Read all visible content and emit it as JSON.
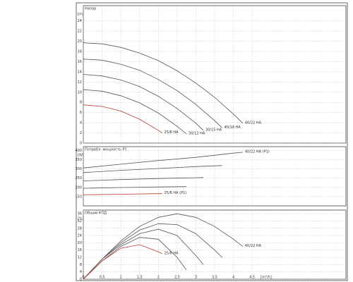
{
  "chart_data": [
    {
      "type": "line",
      "title": "Напор",
      "y_label": "[m]",
      "xlim": [
        0,
        7
      ],
      "xticks": [
        0,
        0.5,
        1,
        1.5,
        2,
        2.5,
        3,
        3.5,
        4,
        4.5
      ],
      "ylim": [
        0,
        27
      ],
      "yticks": [
        0,
        2,
        4,
        6,
        8,
        10,
        12,
        14,
        16,
        18,
        20,
        22,
        24
      ],
      "grid": true,
      "series": [
        {
          "name": "40/22 HA",
          "color": "#555555",
          "x": [
            0,
            0.5,
            1,
            1.5,
            2,
            2.5,
            3,
            3.5,
            4,
            4.25
          ],
          "values": [
            19.7,
            19.5,
            18.8,
            17.7,
            16.2,
            14.2,
            11.8,
            9.0,
            5.7,
            3.9
          ]
        },
        {
          "name": "40/18 HA",
          "color": "#555555",
          "x": [
            0,
            0.5,
            1,
            1.5,
            2,
            2.5,
            3,
            3.5,
            3.7
          ],
          "values": [
            16.5,
            16.3,
            15.5,
            14.3,
            12.5,
            10.3,
            7.6,
            4.4,
            3.0
          ]
        },
        {
          "name": "30/15 HA",
          "color": "#555555",
          "x": [
            0,
            0.5,
            1,
            1.5,
            2,
            2.5,
            3,
            3.2
          ],
          "values": [
            13.5,
            13.2,
            12.4,
            11.1,
            9.2,
            6.8,
            3.9,
            2.5
          ]
        },
        {
          "name": "30/12 HA",
          "color": "#555555",
          "x": [
            0,
            0.5,
            1,
            1.5,
            2,
            2.5,
            2.75
          ],
          "values": [
            10.5,
            10.2,
            9.3,
            7.9,
            5.9,
            3.3,
            1.8
          ]
        },
        {
          "name": "25/8 HA",
          "color": "#c0392b",
          "x": [
            0,
            0.5,
            1,
            1.5,
            2,
            2.1
          ],
          "values": [
            7.5,
            7.2,
            6.3,
            4.7,
            2.5,
            2.0
          ]
        }
      ]
    },
    {
      "type": "line",
      "title": "Потребл. мощность P1",
      "y_label": "[W]",
      "xlim": [
        0,
        7
      ],
      "xticks": [
        0,
        0.5,
        1,
        1.5,
        2,
        2.5,
        3,
        3.5,
        4,
        4.5
      ],
      "ylim": [
        100,
        420
      ],
      "yticks": [
        150,
        200,
        250,
        300,
        350,
        400
      ],
      "grid": true,
      "series": [
        {
          "name": "40/22 HA (P1)",
          "color": "#555555",
          "x": [
            0,
            1,
            2,
            3,
            4,
            4.25
          ],
          "values": [
            305,
            325,
            345,
            362,
            385,
            390
          ]
        },
        {
          "color": "#555555",
          "x": [
            0,
            1,
            2,
            3,
            3.7
          ],
          "values": [
            280,
            292,
            302,
            312,
            318
          ]
        },
        {
          "color": "#555555",
          "x": [
            0,
            1,
            2,
            3,
            3.2
          ],
          "values": [
            235,
            242,
            248,
            252,
            253
          ]
        },
        {
          "color": "#555555",
          "x": [
            0,
            1,
            2,
            2.75
          ],
          "values": [
            195,
            199,
            202,
            204
          ]
        },
        {
          "name": "25/8 HA (P1)",
          "color": "#c0392b",
          "x": [
            0,
            1,
            2,
            2.1
          ],
          "values": [
            160,
            163,
            166,
            166
          ]
        }
      ]
    },
    {
      "type": "line",
      "title": "Общий КПД",
      "y_label": "[%]",
      "x_label": "[m³/h]",
      "xlim": [
        0,
        7
      ],
      "xticks": [
        0,
        {
          "value": 0.5,
          "label": "0,5"
        },
        1,
        {
          "value": 1.5,
          "label": "1,5"
        },
        2,
        {
          "value": 2.5,
          "label": "2,5"
        },
        3,
        {
          "value": 3.5,
          "label": "3,5"
        },
        4,
        {
          "value": 4.5,
          "label": "4,5"
        }
      ],
      "ylim": [
        0,
        38
      ],
      "yticks": [
        0,
        4,
        8,
        12,
        16,
        20,
        24,
        28,
        32,
        36
      ],
      "grid": true,
      "series": [
        {
          "name": "40/22 HA",
          "color": "#555555",
          "x": [
            0,
            0.5,
            1,
            1.5,
            2,
            2.5,
            3,
            3.5,
            4,
            4.25
          ],
          "values": [
            0,
            11,
            21,
            29,
            34,
            36,
            34,
            29,
            22,
            18
          ]
        },
        {
          "color": "#555555",
          "x": [
            0,
            0.5,
            1,
            1.5,
            2,
            2.5,
            3,
            3.5,
            3.7
          ],
          "values": [
            0,
            11,
            20,
            27,
            30.5,
            30,
            25,
            16,
            12
          ]
        },
        {
          "color": "#555555",
          "x": [
            0,
            0.5,
            1,
            1.5,
            2,
            2.5,
            3,
            3.2
          ],
          "values": [
            0,
            11,
            19,
            25,
            27.5,
            24,
            13,
            8
          ]
        },
        {
          "color": "#555555",
          "x": [
            0,
            0.5,
            1,
            1.5,
            2,
            2.5,
            2.75
          ],
          "values": [
            0,
            10,
            18,
            23,
            22,
            12,
            5
          ]
        },
        {
          "name": "25/8 HA",
          "color": "#c0392b",
          "x": [
            0,
            0.5,
            1,
            1.5,
            2,
            2.1
          ],
          "values": [
            0,
            10,
            17,
            19,
            15,
            14
          ]
        }
      ]
    }
  ]
}
